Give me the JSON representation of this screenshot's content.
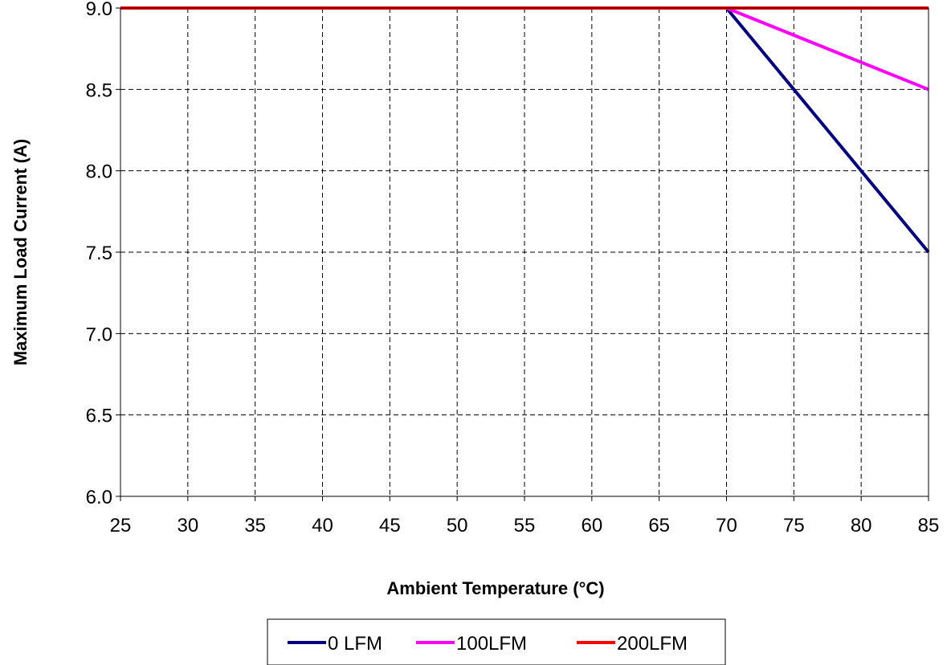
{
  "chart_data": {
    "type": "line",
    "xlabel": "Ambient Temperature (°C)",
    "ylabel": "Maximum Load Current (A)",
    "xlim": [
      25,
      85
    ],
    "ylim": [
      6.0,
      9.0
    ],
    "x_ticks": [
      "25",
      "30",
      "35",
      "40",
      "45",
      "50",
      "55",
      "60",
      "65",
      "70",
      "75",
      "80",
      "85"
    ],
    "y_ticks": [
      "6.0",
      "6.5",
      "7.0",
      "7.5",
      "8.0",
      "8.5",
      "9.0"
    ],
    "grid": true,
    "legend_position": "bottom",
    "series": [
      {
        "name": "0 LFM",
        "color": "#000080",
        "x": [
          25,
          70,
          85
        ],
        "y": [
          9.0,
          9.0,
          7.5
        ]
      },
      {
        "name": "100LFM",
        "color": "#FF00FF",
        "x": [
          25,
          70,
          85
        ],
        "y": [
          9.0,
          9.0,
          8.5
        ]
      },
      {
        "name": "200LFM",
        "color": "#FF0000",
        "x": [
          25,
          85
        ],
        "y": [
          9.0,
          9.0
        ]
      }
    ]
  }
}
